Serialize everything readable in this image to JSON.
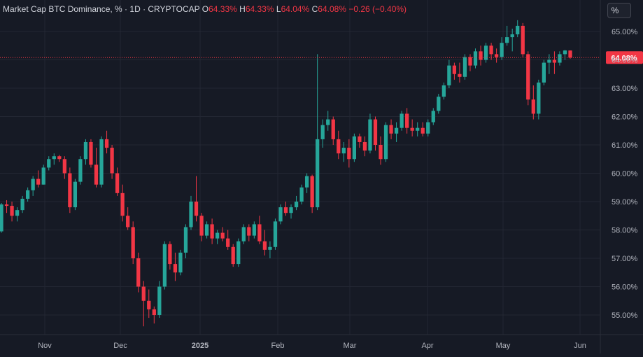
{
  "header": {
    "title": "Market Cap BTC Dominance, % · 1D · CRYPTOCAP",
    "open_label": "O",
    "open_value": "64.33%",
    "high_label": "H",
    "high_value": "64.33%",
    "low_label": "L",
    "low_value": "64.04%",
    "close_label": "C",
    "close_value": "64.08%",
    "change": "−0.26 (−0.40%)"
  },
  "unit_button": "%",
  "price_label": "64.08%",
  "colors": {
    "background": "#161a25",
    "grid": "#232733",
    "up": "#26a69a",
    "down": "#f23645",
    "axis_text": "#b2b5be",
    "price_tag": "#f23645"
  },
  "chart_data": {
    "type": "candlestick",
    "title": "Market Cap BTC Dominance, %",
    "interval": "1D",
    "source": "CRYPTOCAP",
    "ylim": [
      54.6,
      65.5
    ],
    "y_ticks": [
      "65.00%",
      "64.00%",
      "63.00%",
      "62.00%",
      "61.00%",
      "60.00%",
      "59.00%",
      "58.00%",
      "57.00%",
      "56.00%",
      "55.00%"
    ],
    "x_ticks": [
      "Nov",
      "Dec",
      "2025",
      "Feb",
      "Mar",
      "Apr",
      "May",
      "Jun"
    ],
    "grid": true,
    "last_price": 64.08,
    "series": [
      {
        "o": 57.95,
        "h": 58.95,
        "l": 57.9,
        "c": 58.9
      },
      {
        "o": 58.9,
        "h": 59.05,
        "l": 58.6,
        "c": 58.85
      },
      {
        "o": 58.85,
        "h": 59.0,
        "l": 58.3,
        "c": 58.5
      },
      {
        "o": 58.5,
        "h": 58.8,
        "l": 58.3,
        "c": 58.7
      },
      {
        "o": 58.7,
        "h": 59.2,
        "l": 58.6,
        "c": 59.1
      },
      {
        "o": 59.1,
        "h": 59.5,
        "l": 59.0,
        "c": 59.4
      },
      {
        "o": 59.4,
        "h": 59.9,
        "l": 59.2,
        "c": 59.8
      },
      {
        "o": 59.8,
        "h": 60.1,
        "l": 59.5,
        "c": 59.6
      },
      {
        "o": 59.6,
        "h": 60.3,
        "l": 59.6,
        "c": 60.2
      },
      {
        "o": 60.2,
        "h": 60.6,
        "l": 60.1,
        "c": 60.5
      },
      {
        "o": 60.5,
        "h": 60.7,
        "l": 60.3,
        "c": 60.6
      },
      {
        "o": 60.6,
        "h": 60.65,
        "l": 60.4,
        "c": 60.5
      },
      {
        "o": 60.5,
        "h": 60.6,
        "l": 59.8,
        "c": 60.0
      },
      {
        "o": 60.0,
        "h": 60.2,
        "l": 58.6,
        "c": 58.8
      },
      {
        "o": 58.8,
        "h": 59.8,
        "l": 58.7,
        "c": 59.7
      },
      {
        "o": 59.7,
        "h": 60.6,
        "l": 59.6,
        "c": 60.5
      },
      {
        "o": 60.5,
        "h": 61.2,
        "l": 60.3,
        "c": 61.1
      },
      {
        "o": 61.1,
        "h": 61.2,
        "l": 60.2,
        "c": 60.3
      },
      {
        "o": 60.3,
        "h": 60.9,
        "l": 59.5,
        "c": 59.6
      },
      {
        "o": 59.6,
        "h": 61.3,
        "l": 59.5,
        "c": 61.2
      },
      {
        "o": 61.2,
        "h": 61.5,
        "l": 60.7,
        "c": 60.9
      },
      {
        "o": 60.9,
        "h": 61.0,
        "l": 59.8,
        "c": 60.0
      },
      {
        "o": 60.0,
        "h": 60.2,
        "l": 59.2,
        "c": 59.3
      },
      {
        "o": 59.3,
        "h": 59.6,
        "l": 58.3,
        "c": 58.5
      },
      {
        "o": 58.5,
        "h": 58.8,
        "l": 58.0,
        "c": 58.1
      },
      {
        "o": 58.1,
        "h": 58.3,
        "l": 56.8,
        "c": 57.0
      },
      {
        "o": 57.0,
        "h": 57.2,
        "l": 55.8,
        "c": 56.0
      },
      {
        "o": 56.0,
        "h": 56.2,
        "l": 54.6,
        "c": 55.5
      },
      {
        "o": 55.5,
        "h": 55.9,
        "l": 54.9,
        "c": 55.2
      },
      {
        "o": 55.2,
        "h": 55.3,
        "l": 54.7,
        "c": 55.0
      },
      {
        "o": 55.0,
        "h": 56.2,
        "l": 54.9,
        "c": 56.0
      },
      {
        "o": 56.0,
        "h": 57.6,
        "l": 55.9,
        "c": 57.5
      },
      {
        "o": 57.5,
        "h": 57.6,
        "l": 56.6,
        "c": 56.8
      },
      {
        "o": 56.8,
        "h": 57.2,
        "l": 56.2,
        "c": 56.5
      },
      {
        "o": 56.5,
        "h": 57.3,
        "l": 56.4,
        "c": 57.2
      },
      {
        "o": 57.2,
        "h": 58.2,
        "l": 57.0,
        "c": 58.1
      },
      {
        "o": 58.1,
        "h": 59.2,
        "l": 58.0,
        "c": 59.0
      },
      {
        "o": 59.0,
        "h": 59.9,
        "l": 58.3,
        "c": 58.5
      },
      {
        "o": 58.5,
        "h": 58.6,
        "l": 57.6,
        "c": 57.8
      },
      {
        "o": 57.8,
        "h": 58.3,
        "l": 57.7,
        "c": 58.2
      },
      {
        "o": 58.2,
        "h": 58.4,
        "l": 57.5,
        "c": 57.7
      },
      {
        "o": 57.7,
        "h": 58.0,
        "l": 57.5,
        "c": 57.9
      },
      {
        "o": 57.9,
        "h": 58.1,
        "l": 57.6,
        "c": 57.7
      },
      {
        "o": 57.7,
        "h": 58.0,
        "l": 57.3,
        "c": 57.4
      },
      {
        "o": 57.4,
        "h": 57.5,
        "l": 56.7,
        "c": 56.8
      },
      {
        "o": 56.8,
        "h": 57.7,
        "l": 56.7,
        "c": 57.6
      },
      {
        "o": 57.6,
        "h": 58.2,
        "l": 57.5,
        "c": 58.1
      },
      {
        "o": 58.1,
        "h": 58.2,
        "l": 57.6,
        "c": 57.8
      },
      {
        "o": 57.8,
        "h": 58.3,
        "l": 57.7,
        "c": 58.2
      },
      {
        "o": 58.2,
        "h": 58.5,
        "l": 57.5,
        "c": 57.6
      },
      {
        "o": 57.6,
        "h": 58.0,
        "l": 57.1,
        "c": 57.3
      },
      {
        "o": 57.3,
        "h": 57.6,
        "l": 57.0,
        "c": 57.4
      },
      {
        "o": 57.4,
        "h": 58.4,
        "l": 57.3,
        "c": 58.3
      },
      {
        "o": 58.3,
        "h": 58.9,
        "l": 58.2,
        "c": 58.8
      },
      {
        "o": 58.8,
        "h": 59.0,
        "l": 58.5,
        "c": 58.6
      },
      {
        "o": 58.6,
        "h": 58.9,
        "l": 58.4,
        "c": 58.8
      },
      {
        "o": 58.8,
        "h": 59.2,
        "l": 58.7,
        "c": 59.0
      },
      {
        "o": 59.0,
        "h": 59.6,
        "l": 58.9,
        "c": 59.5
      },
      {
        "o": 59.5,
        "h": 60.0,
        "l": 59.3,
        "c": 59.9
      },
      {
        "o": 59.9,
        "h": 59.95,
        "l": 58.6,
        "c": 58.8
      },
      {
        "o": 58.8,
        "h": 64.2,
        "l": 58.7,
        "c": 61.2
      },
      {
        "o": 61.2,
        "h": 61.9,
        "l": 60.9,
        "c": 61.7
      },
      {
        "o": 61.7,
        "h": 62.2,
        "l": 61.5,
        "c": 61.9
      },
      {
        "o": 61.9,
        "h": 62.0,
        "l": 61.0,
        "c": 61.2
      },
      {
        "o": 61.2,
        "h": 61.5,
        "l": 60.5,
        "c": 60.7
      },
      {
        "o": 60.7,
        "h": 61.1,
        "l": 60.4,
        "c": 60.9
      },
      {
        "o": 60.9,
        "h": 61.2,
        "l": 60.2,
        "c": 60.5
      },
      {
        "o": 60.5,
        "h": 61.4,
        "l": 60.4,
        "c": 61.3
      },
      {
        "o": 61.3,
        "h": 61.4,
        "l": 60.9,
        "c": 61.1
      },
      {
        "o": 61.1,
        "h": 61.3,
        "l": 60.6,
        "c": 60.8
      },
      {
        "o": 60.8,
        "h": 62.1,
        "l": 60.7,
        "c": 61.9
      },
      {
        "o": 61.9,
        "h": 62.0,
        "l": 60.8,
        "c": 61.0
      },
      {
        "o": 61.0,
        "h": 61.3,
        "l": 60.3,
        "c": 60.5
      },
      {
        "o": 60.5,
        "h": 61.8,
        "l": 60.4,
        "c": 61.7
      },
      {
        "o": 61.7,
        "h": 61.9,
        "l": 61.2,
        "c": 61.4
      },
      {
        "o": 61.4,
        "h": 61.8,
        "l": 61.1,
        "c": 61.6
      },
      {
        "o": 61.6,
        "h": 62.2,
        "l": 61.5,
        "c": 62.1
      },
      {
        "o": 62.1,
        "h": 62.3,
        "l": 61.4,
        "c": 61.6
      },
      {
        "o": 61.6,
        "h": 61.9,
        "l": 61.3,
        "c": 61.5
      },
      {
        "o": 61.5,
        "h": 61.8,
        "l": 61.3,
        "c": 61.6
      },
      {
        "o": 61.6,
        "h": 61.8,
        "l": 61.3,
        "c": 61.4
      },
      {
        "o": 61.4,
        "h": 61.9,
        "l": 61.3,
        "c": 61.8
      },
      {
        "o": 61.8,
        "h": 62.3,
        "l": 61.7,
        "c": 62.2
      },
      {
        "o": 62.2,
        "h": 62.8,
        "l": 62.1,
        "c": 62.7
      },
      {
        "o": 62.7,
        "h": 63.2,
        "l": 62.6,
        "c": 63.1
      },
      {
        "o": 63.1,
        "h": 64.0,
        "l": 63.0,
        "c": 63.8
      },
      {
        "o": 63.8,
        "h": 63.9,
        "l": 63.3,
        "c": 63.5
      },
      {
        "o": 63.5,
        "h": 63.9,
        "l": 63.2,
        "c": 63.4
      },
      {
        "o": 63.4,
        "h": 64.2,
        "l": 63.3,
        "c": 64.1
      },
      {
        "o": 64.1,
        "h": 64.2,
        "l": 63.6,
        "c": 63.8
      },
      {
        "o": 63.8,
        "h": 64.4,
        "l": 63.7,
        "c": 64.3
      },
      {
        "o": 64.3,
        "h": 64.5,
        "l": 63.8,
        "c": 64.0
      },
      {
        "o": 64.0,
        "h": 64.6,
        "l": 63.9,
        "c": 64.5
      },
      {
        "o": 64.5,
        "h": 64.6,
        "l": 64.0,
        "c": 64.2
      },
      {
        "o": 64.2,
        "h": 64.4,
        "l": 63.9,
        "c": 64.1
      },
      {
        "o": 64.1,
        "h": 64.8,
        "l": 64.0,
        "c": 64.6
      },
      {
        "o": 64.6,
        "h": 65.2,
        "l": 64.5,
        "c": 64.8
      },
      {
        "o": 64.8,
        "h": 65.1,
        "l": 64.3,
        "c": 64.9
      },
      {
        "o": 64.9,
        "h": 65.4,
        "l": 64.8,
        "c": 65.2
      },
      {
        "o": 65.2,
        "h": 65.3,
        "l": 64.1,
        "c": 64.2
      },
      {
        "o": 64.2,
        "h": 64.3,
        "l": 62.4,
        "c": 62.6
      },
      {
        "o": 62.6,
        "h": 63.1,
        "l": 61.9,
        "c": 62.1
      },
      {
        "o": 62.1,
        "h": 63.3,
        "l": 61.9,
        "c": 63.2
      },
      {
        "o": 63.2,
        "h": 64.0,
        "l": 63.1,
        "c": 63.9
      },
      {
        "o": 63.9,
        "h": 64.2,
        "l": 63.5,
        "c": 64.0
      },
      {
        "o": 64.0,
        "h": 64.3,
        "l": 63.5,
        "c": 63.9
      },
      {
        "o": 63.9,
        "h": 64.3,
        "l": 63.8,
        "c": 64.2
      },
      {
        "o": 64.2,
        "h": 64.35,
        "l": 64.0,
        "c": 64.33
      },
      {
        "o": 64.33,
        "h": 64.33,
        "l": 64.04,
        "c": 64.08
      }
    ]
  }
}
